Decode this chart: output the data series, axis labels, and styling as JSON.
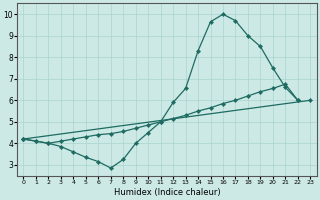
{
  "xlabel": "Humidex (Indice chaleur)",
  "bg_color": "#cce9e5",
  "grid_color": "#aad4cf",
  "line_color": "#1e6b62",
  "xlim": [
    -0.5,
    23.5
  ],
  "ylim": [
    2.5,
    10.5
  ],
  "xticks": [
    0,
    1,
    2,
    3,
    4,
    5,
    6,
    7,
    8,
    9,
    10,
    11,
    12,
    13,
    14,
    15,
    16,
    17,
    18,
    19,
    20,
    21,
    22,
    23
  ],
  "yticks": [
    3,
    4,
    5,
    6,
    7,
    8,
    9,
    10
  ],
  "curve1_x": [
    0,
    1,
    2,
    3,
    4,
    5,
    6,
    7,
    8,
    9,
    10,
    11,
    12,
    13,
    14,
    15,
    16,
    17,
    18,
    19,
    20,
    21,
    22
  ],
  "curve1_y": [
    4.2,
    4.1,
    4.0,
    3.85,
    3.6,
    3.35,
    3.15,
    2.85,
    3.25,
    4.0,
    4.5,
    5.0,
    5.9,
    6.55,
    8.3,
    9.65,
    10.0,
    9.7,
    9.0,
    8.5,
    7.5,
    6.6,
    6.0
  ],
  "curve2_x": [
    0,
    23
  ],
  "curve2_y": [
    4.2,
    6.0
  ],
  "curve3_x": [
    0,
    1,
    2,
    3,
    4,
    5,
    6,
    7,
    8,
    9,
    10,
    11,
    12,
    13,
    14,
    15,
    16,
    17,
    18,
    19,
    20,
    21,
    22
  ],
  "curve3_y": [
    4.2,
    4.1,
    4.0,
    4.1,
    4.2,
    4.3,
    4.4,
    4.45,
    4.55,
    4.7,
    4.85,
    5.0,
    5.15,
    5.3,
    5.5,
    5.65,
    5.85,
    6.0,
    6.2,
    6.4,
    6.55,
    6.75,
    6.0
  ]
}
